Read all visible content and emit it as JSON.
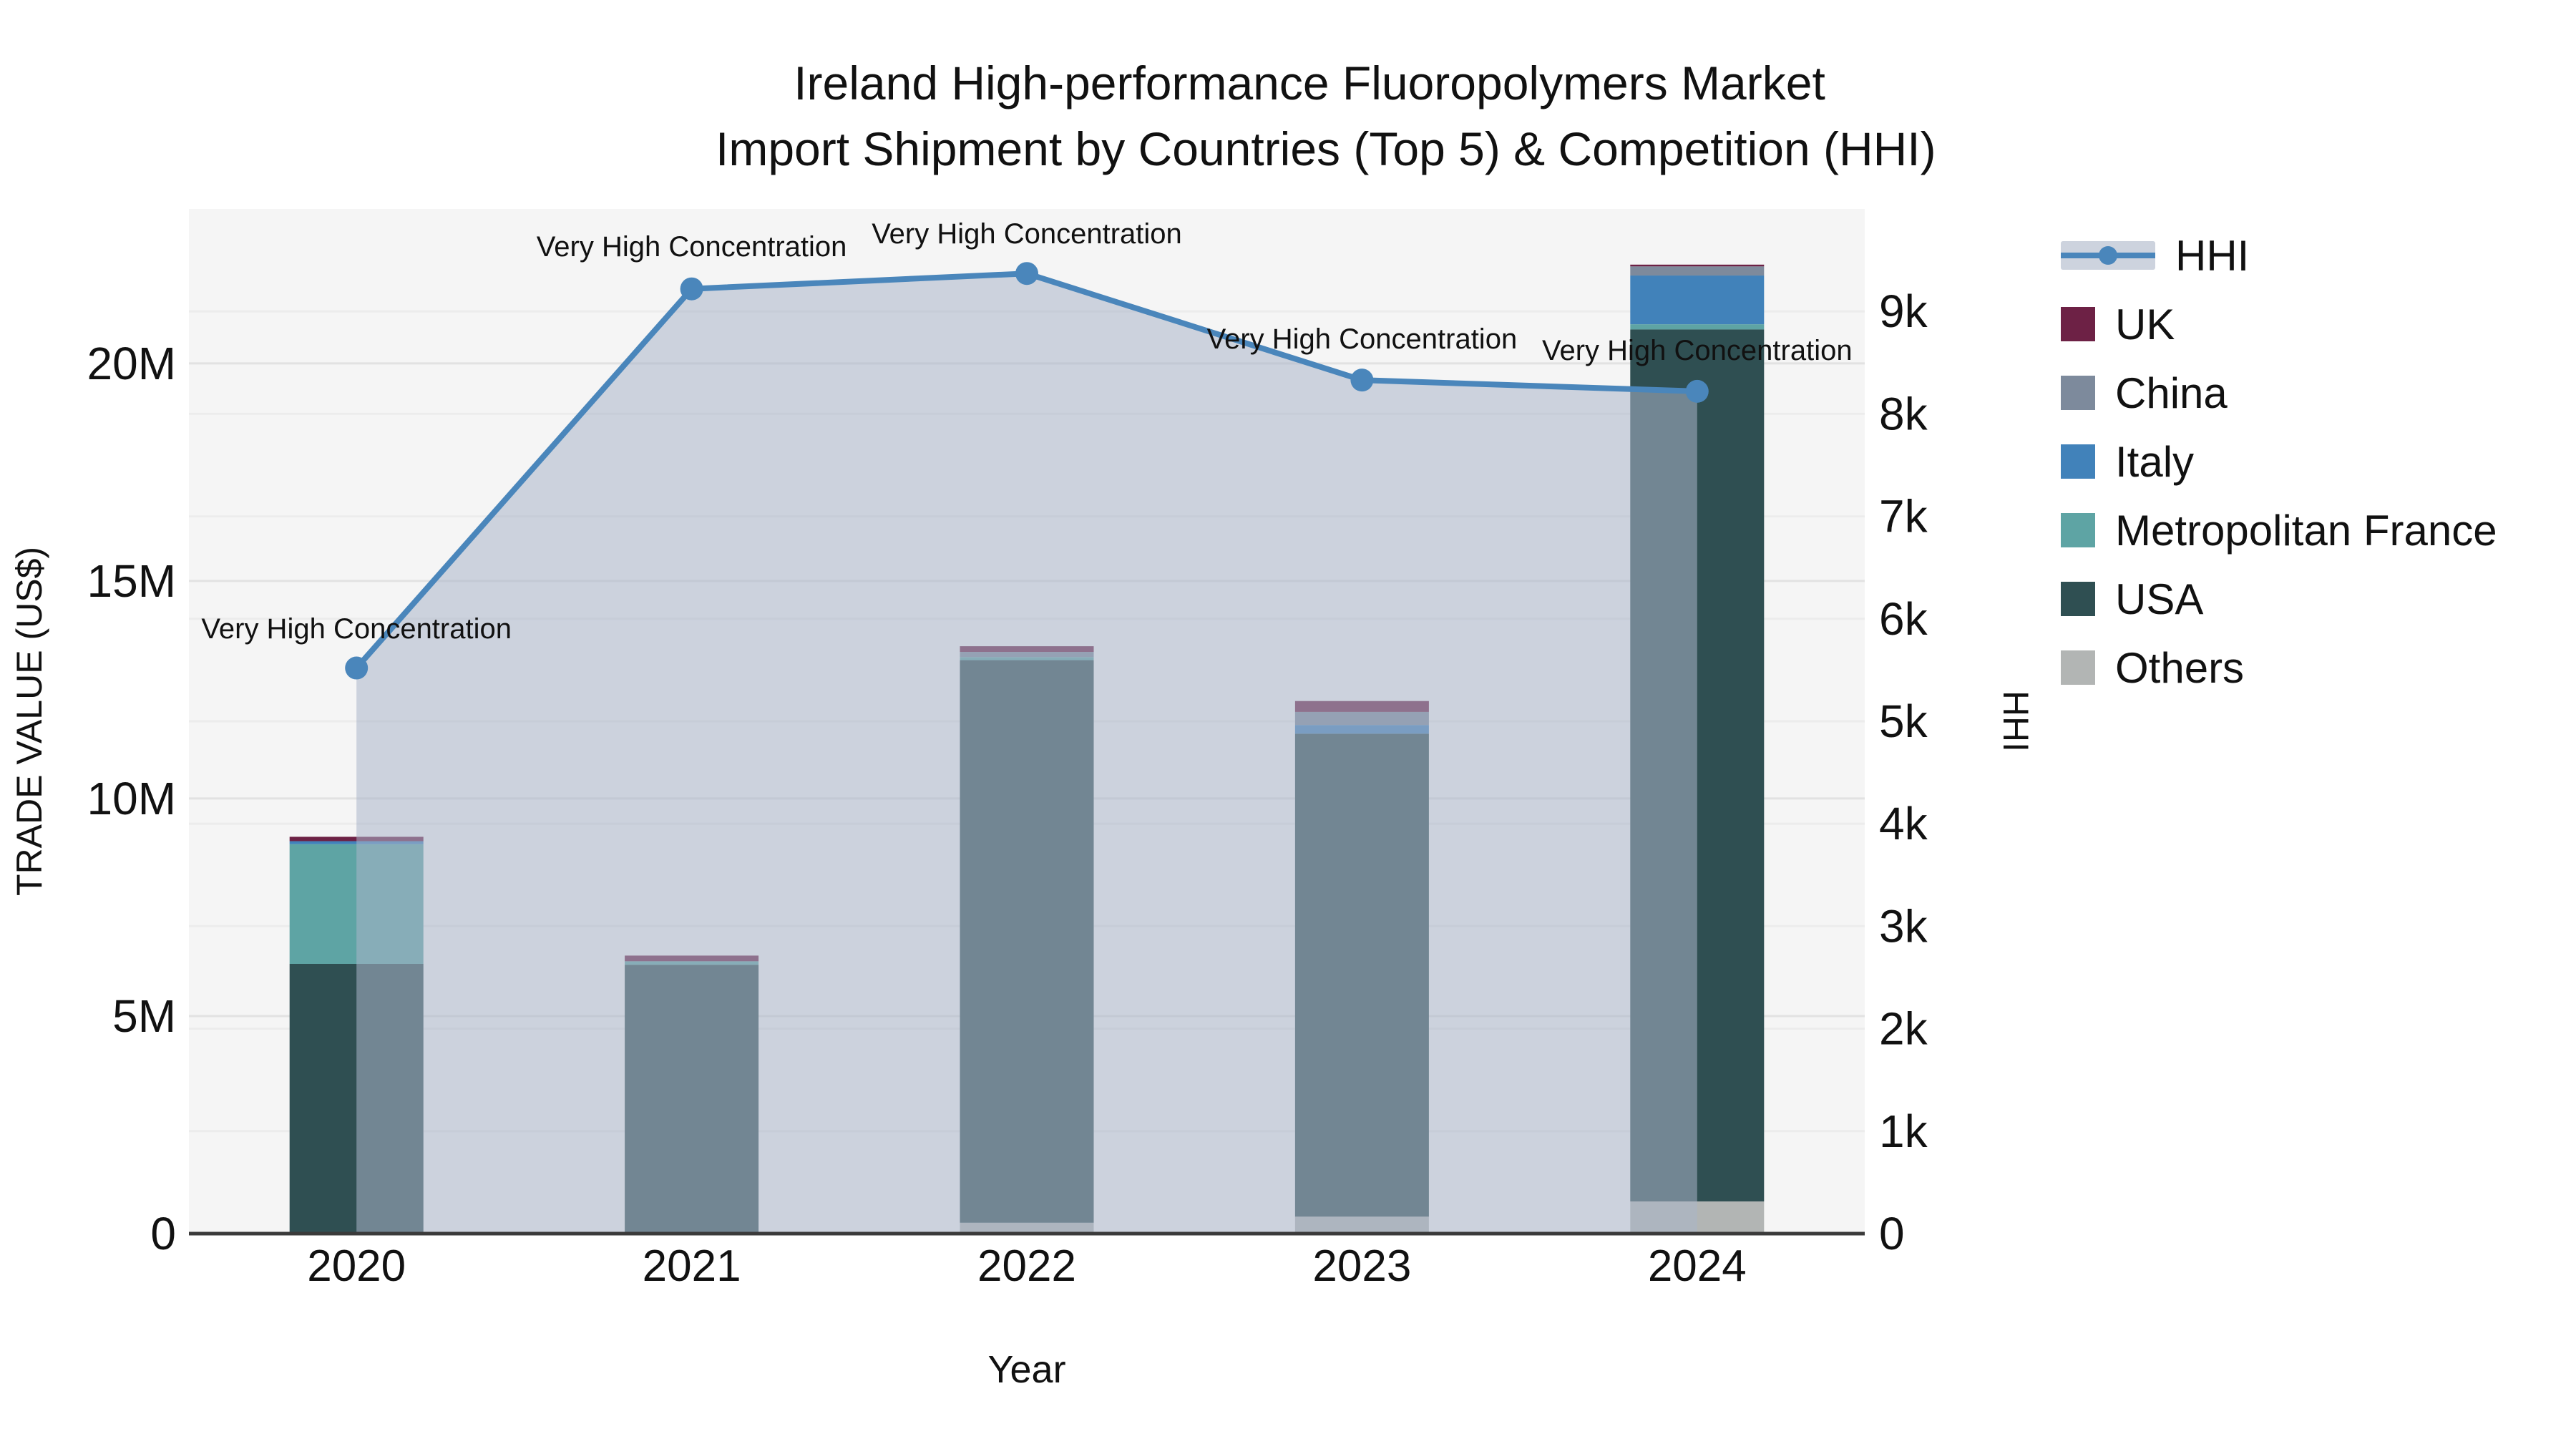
{
  "title": {
    "line1": "Ireland High-performance Fluoropolymers Market",
    "line2": "Import Shipment by Countries (Top 5) & Competition (HHI)"
  },
  "chart_data": {
    "type": "bar",
    "stacked": true,
    "grid": true,
    "plot_background": "#f5f5f5",
    "categories": [
      "2020",
      "2021",
      "2022",
      "2023",
      "2024"
    ],
    "xlabel": "Year",
    "y_left": {
      "label": "TRADE VALUE (US$)",
      "tick_labels": [
        "0",
        "5M",
        "10M",
        "15M",
        "20M"
      ],
      "tick_values_musd": [
        0,
        5,
        10,
        15,
        20
      ],
      "max_musd": 23.55
    },
    "y_right": {
      "label": "HHI",
      "tick_labels": [
        "0",
        "1k",
        "2k",
        "3k",
        "4k",
        "5k",
        "6k",
        "7k",
        "8k",
        "9k"
      ],
      "tick_values": [
        0,
        1000,
        2000,
        3000,
        4000,
        5000,
        6000,
        7000,
        8000,
        9000
      ],
      "max": 10000
    },
    "series": [
      {
        "name": "Others",
        "color": "#b2b5b4",
        "values_musd": [
          0,
          0,
          0.25,
          0.39,
          0.74
        ]
      },
      {
        "name": "USA",
        "color": "#2f4f52",
        "values_musd": [
          6.2,
          6.18,
          12.93,
          11.1,
          20.04
        ]
      },
      {
        "name": "Metropolitan France",
        "color": "#5ea4a4",
        "values_musd": [
          2.75,
          0.08,
          0.07,
          0,
          0.12
        ]
      },
      {
        "name": "Italy",
        "color": "#4182ba",
        "values_musd": [
          0.07,
          0,
          0,
          0.2,
          1.12
        ]
      },
      {
        "name": "China",
        "color": "#7d8a9c",
        "values_musd": [
          0,
          0,
          0.12,
          0.3,
          0.21
        ]
      },
      {
        "name": "UK",
        "color": "#6d2145",
        "values_musd": [
          0.1,
          0.13,
          0.13,
          0.25,
          0.04
        ]
      }
    ],
    "bar_totals_musd": [
      9.12,
      6.39,
      13.5,
      12.24,
      22.27
    ],
    "line_series": {
      "name": "HHI",
      "axis": "right",
      "color": "#4a86bb",
      "fill_color": "#a9b4c8",
      "fill_opacity": 0.55,
      "values": [
        5520,
        9220,
        9370,
        8330,
        8220
      ]
    },
    "annotations": [
      {
        "x": "2020",
        "text": "Very High Concentration"
      },
      {
        "x": "2021",
        "text": "Very High Concentration"
      },
      {
        "x": "2022",
        "text": "Very High Concentration"
      },
      {
        "x": "2023",
        "text": "Very High Concentration"
      },
      {
        "x": "2024",
        "text": "Very High Concentration"
      }
    ],
    "legend": {
      "position": "right",
      "entries": [
        "HHI",
        "UK",
        "China",
        "Italy",
        "Metropolitan France",
        "USA",
        "Others"
      ]
    }
  },
  "colors": {
    "axis_line": "#3a3a3a",
    "grid_major": "#e2e2e2",
    "grid_minor": "#ececec",
    "text": "#111111"
  }
}
